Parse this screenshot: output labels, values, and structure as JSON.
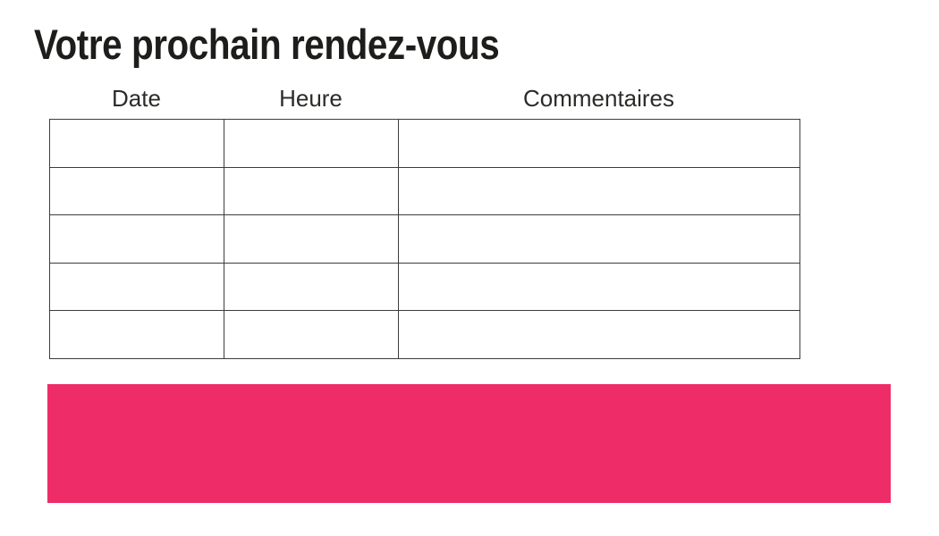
{
  "slide": {
    "title": "Votre prochain rendez-vous"
  },
  "appointments_table": {
    "columns": [
      {
        "id": "date",
        "label": "Date"
      },
      {
        "id": "heure",
        "label": "Heure"
      },
      {
        "id": "commentaires",
        "label": "Commentaires"
      }
    ],
    "row_count": 5,
    "rows": [
      [
        "",
        "",
        ""
      ],
      [
        "",
        "",
        ""
      ],
      [
        "",
        "",
        ""
      ],
      [
        "",
        "",
        ""
      ],
      [
        "",
        "",
        ""
      ]
    ]
  },
  "banner": {
    "text": ""
  },
  "colors": {
    "accent_pink": "#EE2C68",
    "title_text": "#1D1D1B",
    "header_text": "#2B2B29",
    "table_border": "#3C3C3B",
    "background": "#FFFFFF"
  }
}
